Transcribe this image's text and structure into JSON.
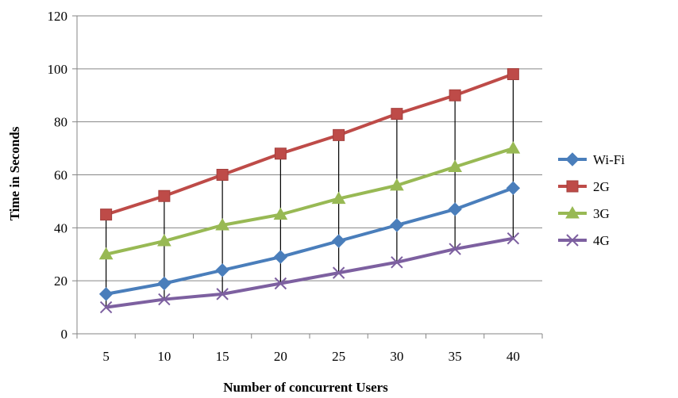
{
  "chart_data": {
    "type": "line",
    "xlabel": "Number  of concurrent Users",
    "ylabel": "Time  in Seconds",
    "categories": [
      "5",
      "10",
      "15",
      "20",
      "25",
      "30",
      "35",
      "40"
    ],
    "ylim": [
      0,
      120
    ],
    "yticks": [
      "0",
      "20",
      "40",
      "60",
      "80",
      "100",
      "120"
    ],
    "grid": true,
    "legend_position": "right",
    "drop_lines": true,
    "series": [
      {
        "name": "Wi-Fi",
        "color": "#4a7ebb",
        "marker": "diamond",
        "values": [
          15,
          19,
          24,
          29,
          35,
          41,
          47,
          55
        ]
      },
      {
        "name": "2G",
        "color": "#be4b48",
        "marker": "square",
        "values": [
          45,
          52,
          60,
          68,
          75,
          83,
          90,
          98
        ]
      },
      {
        "name": "3G",
        "color": "#98b954",
        "marker": "triangle",
        "values": [
          30,
          35,
          41,
          45,
          51,
          56,
          63,
          70
        ]
      },
      {
        "name": "4G",
        "color": "#7d60a0",
        "marker": "x",
        "values": [
          10,
          13,
          15,
          19,
          23,
          27,
          32,
          36
        ]
      }
    ]
  }
}
